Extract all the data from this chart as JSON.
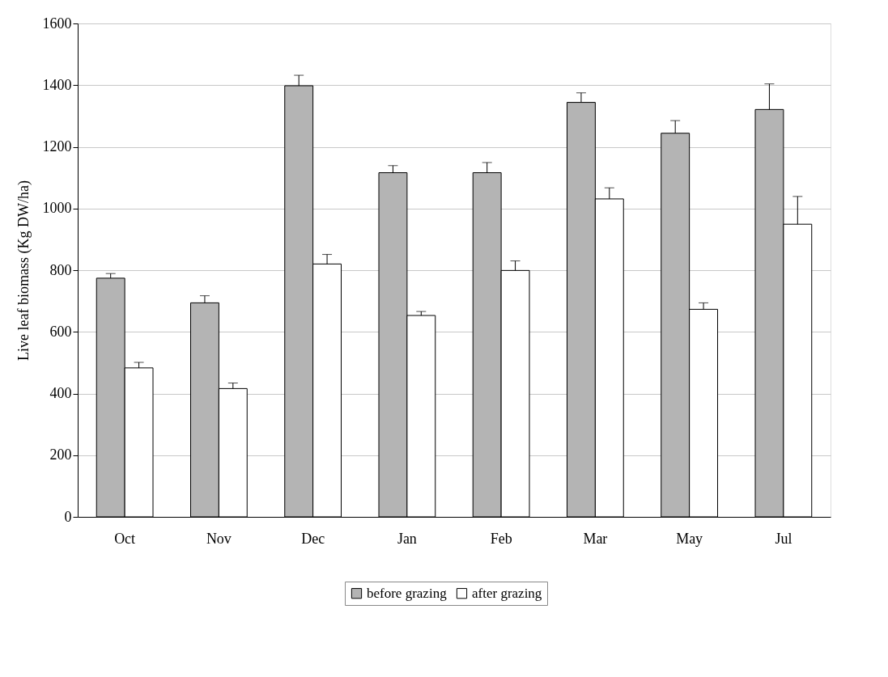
{
  "chart_data": {
    "type": "bar",
    "ylabel": "Live leaf biomass (Kg DW/ha)",
    "categories": [
      "Oct",
      "Nov",
      "Dec",
      "Jan",
      "Feb",
      "Mar",
      "May",
      "Jul"
    ],
    "series": [
      {
        "name": "before grazing",
        "color": "#b4b4b4",
        "values": [
          774,
          694,
          1398,
          1116,
          1116,
          1344,
          1244,
          1321
        ],
        "errors": [
          [
            774,
            789
          ],
          [
            694,
            717
          ],
          [
            1398,
            1432
          ],
          [
            1116,
            1139
          ],
          [
            1116,
            1149
          ],
          [
            1344,
            1375
          ],
          [
            1244,
            1285
          ],
          [
            1321,
            1404
          ]
        ]
      },
      {
        "name": "after grazing",
        "color": "#ffffff",
        "values": [
          483,
          416,
          820,
          653,
          799,
          1031,
          673,
          949
        ],
        "errors": [
          [
            483,
            501
          ],
          [
            416,
            434
          ],
          [
            820,
            851
          ],
          [
            653,
            666
          ],
          [
            799,
            830
          ],
          [
            1031,
            1067
          ],
          [
            673,
            694
          ],
          [
            949,
            1039
          ]
        ]
      }
    ],
    "ylim": [
      0,
      1600
    ],
    "yticks": [
      0,
      200,
      400,
      600,
      800,
      1000,
      1200,
      1400,
      1600
    ],
    "grid": "y",
    "legend": "bottom"
  }
}
